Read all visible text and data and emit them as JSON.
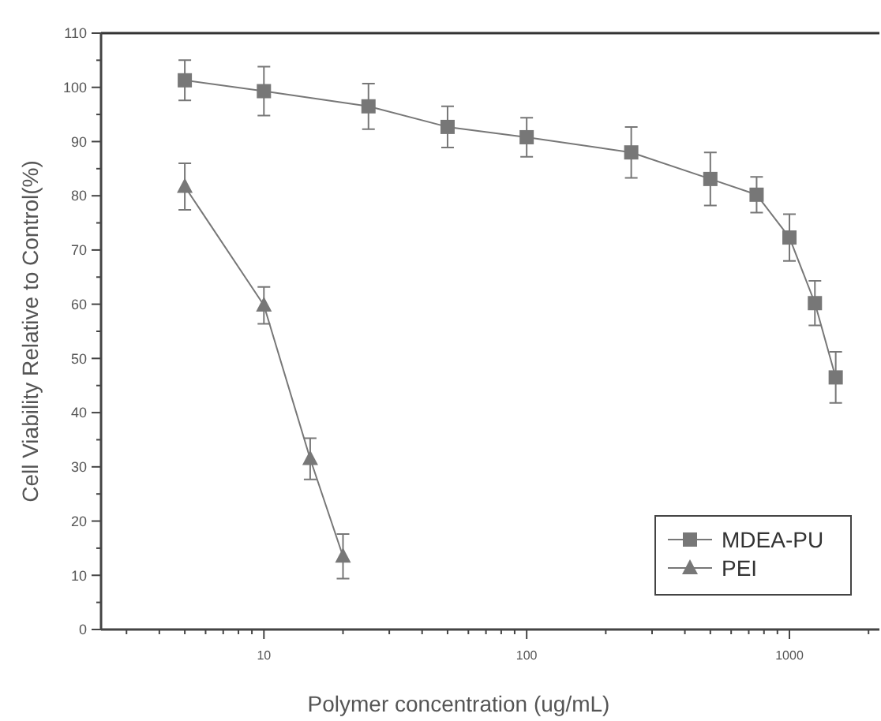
{
  "chart_data": {
    "type": "line",
    "xlabel": "Polymer concentration (ug/mL)",
    "ylabel": "Cell Viability Relative to Control(%)",
    "log": "x",
    "xlim": [
      2.4,
      2200
    ],
    "ylim": [
      0,
      110
    ],
    "xticks": [
      {
        "value": 3,
        "label": null
      },
      {
        "value": 4,
        "label": null
      },
      {
        "value": 5,
        "label": null
      },
      {
        "value": 6,
        "label": null
      },
      {
        "value": 7,
        "label": null
      },
      {
        "value": 8,
        "label": null
      },
      {
        "value": 9,
        "label": null
      },
      10,
      {
        "value": 20,
        "label": null
      },
      {
        "value": 30,
        "label": null
      },
      {
        "value": 40,
        "label": null
      },
      {
        "value": 50,
        "label": null
      },
      {
        "value": 60,
        "label": null
      },
      {
        "value": 70,
        "label": null
      },
      {
        "value": 80,
        "label": null
      },
      {
        "value": 90,
        "label": null
      },
      100,
      {
        "value": 200,
        "label": null
      },
      {
        "value": 300,
        "label": null
      },
      {
        "value": 400,
        "label": null
      },
      {
        "value": 500,
        "label": null
      },
      {
        "value": 600,
        "label": null
      },
      {
        "value": 700,
        "label": null
      },
      {
        "value": 800,
        "label": null
      },
      {
        "value": 900,
        "label": null
      },
      1000,
      {
        "value": 2000,
        "label": null
      }
    ],
    "yticks": [
      0,
      {
        "value": 5,
        "label": null
      },
      10,
      {
        "value": 15,
        "label": null
      },
      20,
      {
        "value": 25,
        "label": null
      },
      30,
      {
        "value": 35,
        "label": null
      },
      40,
      {
        "value": 45,
        "label": null
      },
      50,
      {
        "value": 55,
        "label": null
      },
      60,
      {
        "value": 65,
        "label": null
      },
      70,
      {
        "value": 75,
        "label": null
      },
      80,
      {
        "value": 85,
        "label": null
      },
      90,
      {
        "value": 95,
        "label": null
      },
      100,
      {
        "value": 105,
        "label": null
      },
      110
    ],
    "grid": false,
    "legend": "bottom right",
    "line_style": "solid",
    "series": [
      {
        "name": "MDEA-PU",
        "color": "#777777",
        "marker": "square",
        "x": [
          5,
          10,
          25,
          50,
          100,
          250,
          500,
          750,
          1000,
          1250,
          1500
        ],
        "values": [
          101.3,
          99.3,
          96.5,
          92.7,
          90.8,
          88.0,
          83.1,
          80.2,
          72.3,
          60.2,
          46.5
        ],
        "errors": [
          3.7,
          4.5,
          4.2,
          3.8,
          3.6,
          4.7,
          4.9,
          3.3,
          4.3,
          4.1,
          4.7
        ]
      },
      {
        "name": "PEI",
        "color": "#777777",
        "marker": "triangle",
        "x": [
          5,
          10,
          15,
          20
        ],
        "values": [
          81.7,
          59.8,
          31.5,
          13.5
        ],
        "errors": [
          4.3,
          3.4,
          3.8,
          4.1
        ]
      }
    ]
  }
}
